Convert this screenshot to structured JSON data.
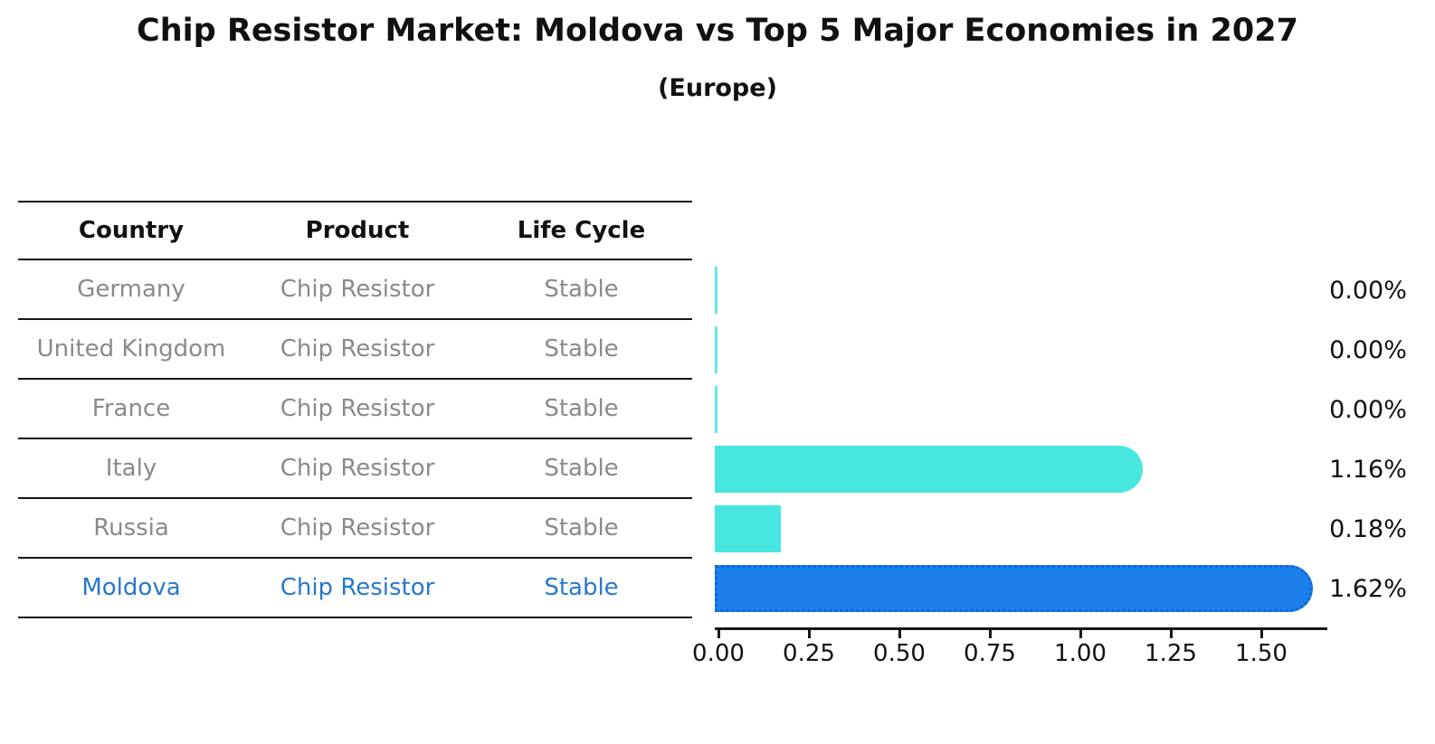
{
  "title": "Chip Resistor Market: Moldova vs Top 5 Major Economies in 2027",
  "subtitle": "(Europe)",
  "table": {
    "headers": [
      "Country",
      "Product",
      "Life Cycle"
    ],
    "rows": [
      {
        "country": "Germany",
        "product": "Chip Resistor",
        "life_cycle": "Stable",
        "highlighted": false
      },
      {
        "country": "United Kingdom",
        "product": "Chip Resistor",
        "life_cycle": "Stable",
        "highlighted": false
      },
      {
        "country": "France",
        "product": "Chip Resistor",
        "life_cycle": "Stable",
        "highlighted": false
      },
      {
        "country": "Italy",
        "product": "Chip Resistor",
        "life_cycle": "Stable",
        "highlighted": false
      },
      {
        "country": "Russia",
        "product": "Chip Resistor",
        "life_cycle": "Stable",
        "highlighted": false
      },
      {
        "country": "Moldova",
        "product": "Chip Resistor",
        "life_cycle": "Stable",
        "highlighted": true
      }
    ]
  },
  "chart_data": {
    "type": "bar",
    "orientation": "horizontal",
    "title": "Chip Resistor Market: Moldova vs Top 5 Major Economies in 2027",
    "subtitle": "(Europe)",
    "categories": [
      "Germany",
      "United Kingdom",
      "France",
      "Italy",
      "Russia",
      "Moldova"
    ],
    "values": [
      0.0,
      0.0,
      0.0,
      1.16,
      0.18,
      1.62
    ],
    "value_labels": [
      "0.00%",
      "0.00%",
      "0.00%",
      "1.16%",
      "0.18%",
      "1.62%"
    ],
    "highlight_index": 5,
    "x_ticks": [
      0.0,
      0.25,
      0.5,
      0.75,
      1.0,
      1.25,
      1.5
    ],
    "x_tick_labels": [
      "0.00",
      "0.25",
      "0.50",
      "0.75",
      "1.00",
      "1.25",
      "1.50"
    ],
    "xlim": [
      0,
      1.66
    ],
    "grid": false,
    "legend": "none",
    "colors": {
      "bar": "#47E7E0",
      "highlight_fill": "#1C80EC",
      "highlight_border": "#1463D6",
      "highlight_text": "#2878CC",
      "table_text": "#8A8A8A",
      "axis": "#151515"
    }
  }
}
